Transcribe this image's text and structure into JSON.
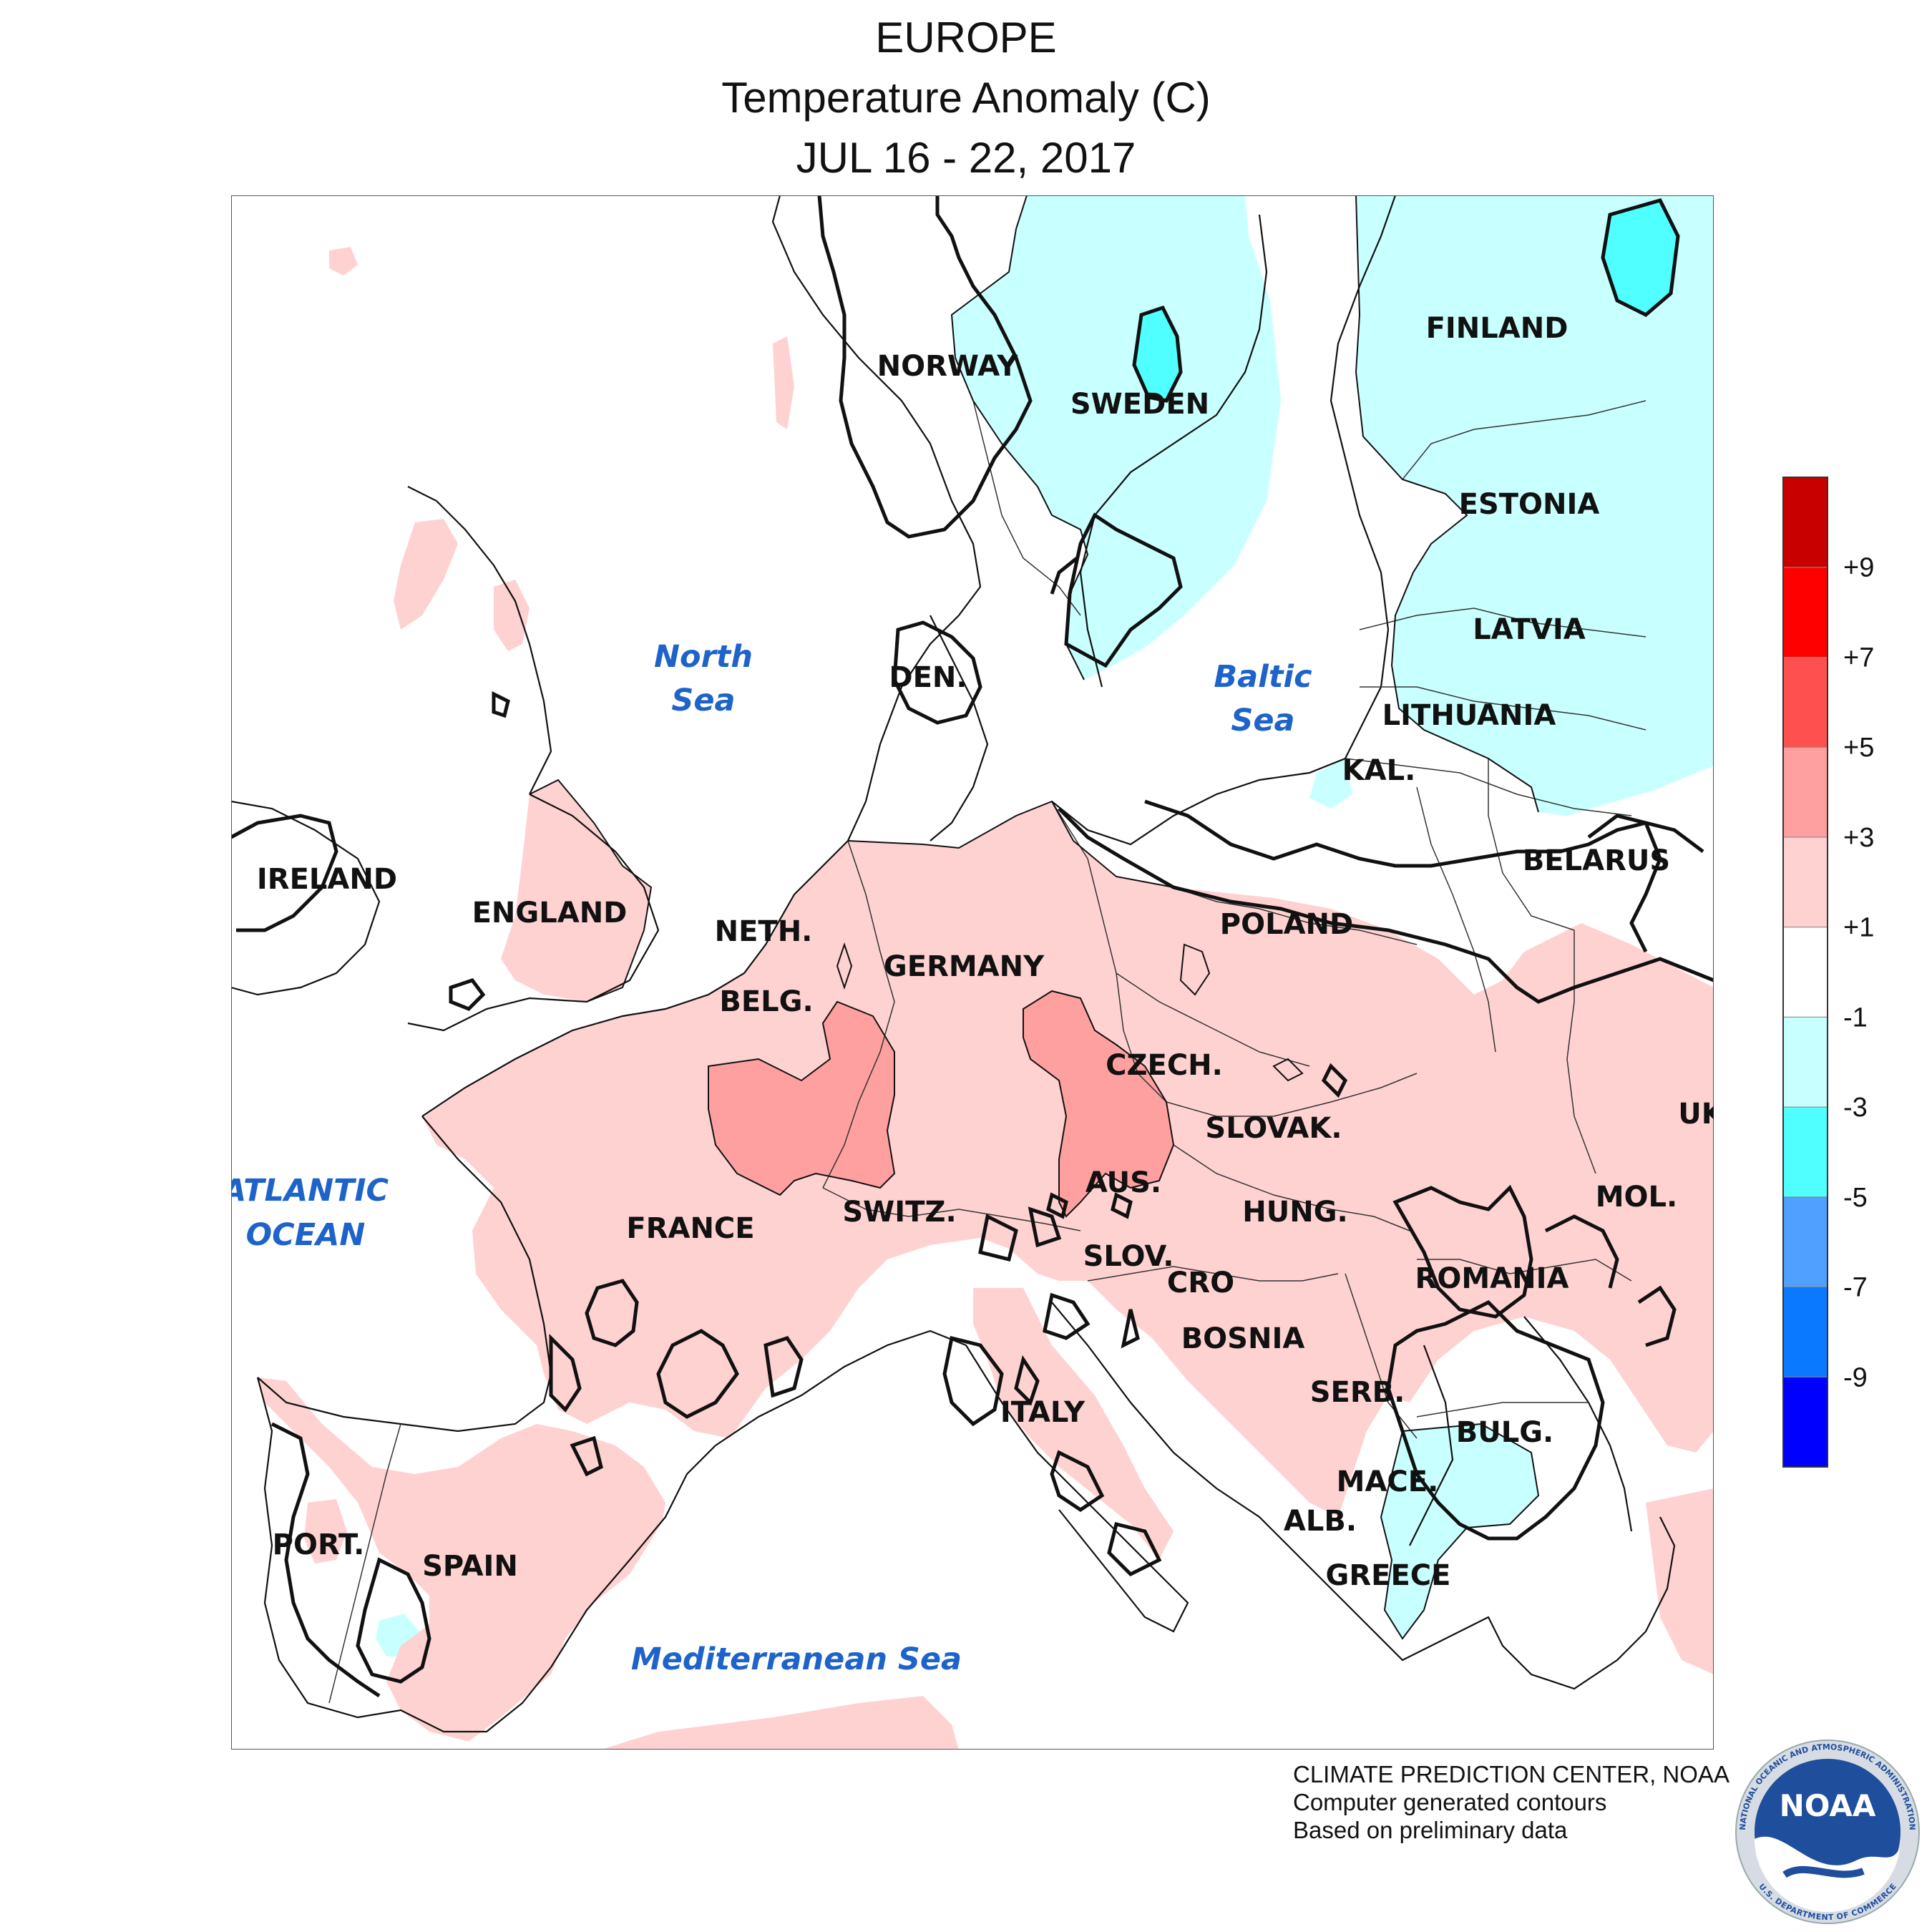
{
  "title": {
    "line1": "EUROPE",
    "line2": "Temperature Anomaly (C)",
    "line3": "JUL 16 - 22, 2017"
  },
  "countries": [
    "NORWAY",
    "SWEDEN",
    "FINLAND",
    "ESTONIA",
    "LATVIA",
    "LITHUANIA",
    "KAL.",
    "BELARUS",
    "DEN.",
    "IRELAND",
    "ENGLAND",
    "NETH.",
    "BELG.",
    "GERMANY",
    "POLAND",
    "CZECH.",
    "SLOVAK.",
    "UK",
    "AUS.",
    "SWITZ.",
    "FRANCE",
    "HUNG.",
    "MOL.",
    "SLOV.",
    "CRO",
    "ROMANIA",
    "BOSNIA",
    "SERB.",
    "BULG.",
    "ITALY",
    "MACE.",
    "ALB.",
    "GREECE",
    "PORT.",
    "SPAIN"
  ],
  "seas": {
    "north_sea_1": "North",
    "north_sea_2": "Sea",
    "baltic_1": "Baltic",
    "baltic_2": "Sea",
    "atlantic_1": "ATLANTIC",
    "atlantic_2": "OCEAN",
    "med": "Mediterranean Sea"
  },
  "legend": {
    "labels": [
      "+9",
      "+7",
      "+5",
      "+3",
      "+1",
      "-1",
      "-3",
      "-5",
      "-7",
      "-9"
    ],
    "colors": [
      "#c80000",
      "#ff0000",
      "#ff5050",
      "#ffa0a0",
      "#ffd2d2",
      "#ffffff",
      "#c8ffff",
      "#50ffff",
      "#50a0ff",
      "#0a78ff",
      "#0000ff"
    ]
  },
  "anomaly_colors": {
    "plus_1_to_3": "#ffd2d2",
    "plus_3_to_5": "#ffa0a0",
    "minus_1_to_3": "#c8ffff",
    "minus_3_to_5": "#50ffff"
  },
  "credits": {
    "line1": "CLIMATE PREDICTION CENTER, NOAA",
    "line2": "Computer generated contours",
    "line3": "Based on preliminary data"
  },
  "logo": {
    "text": "NOAA",
    "ring_text": "NATIONAL OCEANIC AND ATMOSPHERIC ADMINISTRATION",
    "ring_bottom": "U.S. DEPARTMENT OF COMMERCE"
  }
}
